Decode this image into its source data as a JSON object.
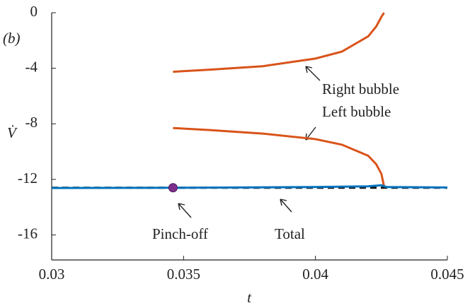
{
  "chart_data": {
    "type": "line",
    "panel_label": "(b)",
    "xlabel": "t",
    "ylabel": "V̇",
    "xlim": [
      0.03,
      0.045
    ],
    "ylim": [
      -17.8,
      0
    ],
    "xticks": [
      0.03,
      0.035,
      0.04,
      0.045
    ],
    "yticks": [
      0,
      -4,
      -8,
      -12,
      -16
    ],
    "series": [
      {
        "name": "Right bubble",
        "color": "#d95319",
        "x": [
          0.0346,
          0.036,
          0.038,
          0.04,
          0.041,
          0.042,
          0.0423,
          0.0425,
          0.0426
        ],
        "values": [
          -4.25,
          -4.1,
          -3.85,
          -3.3,
          -2.8,
          -1.7,
          -1.0,
          -0.3,
          0
        ]
      },
      {
        "name": "Left bubble",
        "color": "#d95319",
        "x": [
          0.0346,
          0.036,
          0.038,
          0.04,
          0.041,
          0.042,
          0.0423,
          0.0425,
          0.0426
        ],
        "values": [
          -8.3,
          -8.45,
          -8.7,
          -9.1,
          -9.5,
          -10.3,
          -10.9,
          -11.6,
          -12.5
        ]
      },
      {
        "color": "#111111",
        "dash": true,
        "x": [
          0.03,
          0.045
        ],
        "values": [
          -12.6,
          -12.6
        ]
      },
      {
        "name": "Total",
        "color": "#0072bd",
        "x": [
          0.03,
          0.035,
          0.04,
          0.042,
          0.0425,
          0.0427,
          0.045
        ],
        "values": [
          -12.62,
          -12.6,
          -12.55,
          -12.5,
          -12.42,
          -12.55,
          -12.58
        ]
      }
    ],
    "points": [
      {
        "name": "Pinch-off",
        "color": "#7e2f8e",
        "x": 0.0346,
        "value": -12.6
      }
    ]
  }
}
